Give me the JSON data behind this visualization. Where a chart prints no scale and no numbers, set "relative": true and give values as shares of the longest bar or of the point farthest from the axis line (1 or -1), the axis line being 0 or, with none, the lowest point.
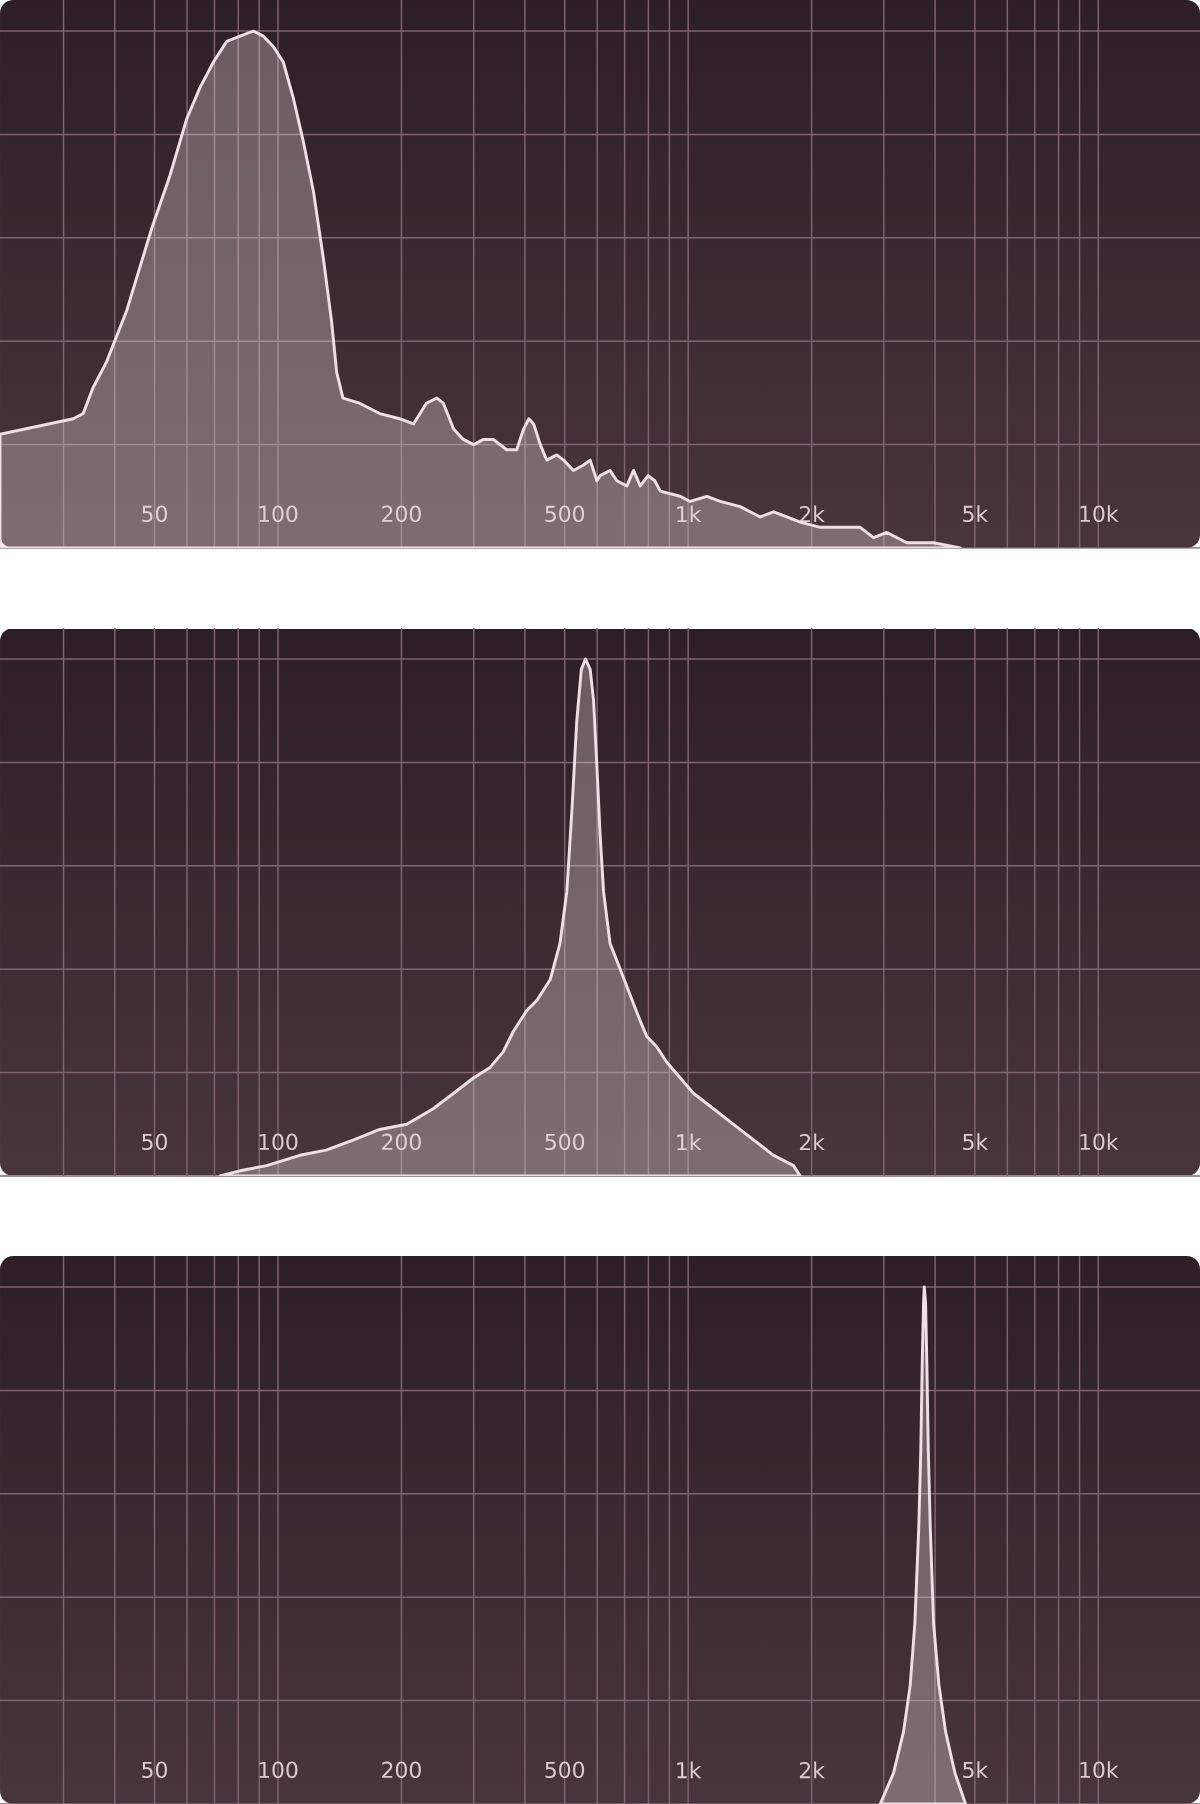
{
  "chart_data": [
    {
      "type": "area",
      "relative": true,
      "color": "#eddfe3",
      "log": "x",
      "grid": true,
      "xlim": [
        21,
        17700
      ],
      "xticks": [
        {
          "value": 30,
          "label": null
        },
        {
          "value": 40,
          "label": null
        },
        50,
        {
          "value": 60,
          "label": null
        },
        {
          "value": 70,
          "label": null
        },
        {
          "value": 80,
          "label": null
        },
        {
          "value": 90,
          "label": null
        },
        100,
        200,
        {
          "value": 300,
          "label": null
        },
        {
          "value": 400,
          "label": null
        },
        500,
        {
          "value": 600,
          "label": null
        },
        {
          "value": 700,
          "label": null
        },
        {
          "value": 800,
          "label": null
        },
        {
          "value": 900,
          "label": null
        },
        {
          "value": 1000,
          "label": "1k"
        },
        {
          "value": 2000,
          "label": "2k"
        },
        {
          "value": 3000,
          "label": null
        },
        {
          "value": 4000,
          "label": null
        },
        {
          "value": 5000,
          "label": "5k"
        },
        {
          "value": 6000,
          "label": null
        },
        {
          "value": 7000,
          "label": null
        },
        {
          "value": 8000,
          "label": null
        },
        {
          "value": 9000,
          "label": null
        },
        {
          "value": 10000,
          "label": "10k"
        }
      ],
      "x": [
        21,
        31.7,
        33.5,
        35.4,
        38.2,
        42.8,
        49.3,
        54.5,
        59.9,
        64.5,
        69.6,
        75,
        80.8,
        87.1,
        92.1,
        97.4,
        103,
        109,
        115,
        122,
        129,
        135,
        139,
        144,
        158,
        177,
        198,
        214,
        222,
        230,
        244,
        253,
        268,
        283,
        300,
        317,
        335,
        361,
        382,
        397,
        409,
        420,
        436,
        452,
        478,
        497,
        525,
        555,
        577,
        599,
        610,
        645,
        670,
        709,
        736,
        764,
        799,
        829,
        855,
        956,
        1011,
        1111,
        1197,
        1339,
        1498,
        1615,
        1741,
        1876,
        2099,
        2348,
        2627,
        2831,
        3051,
        3414,
        3966,
        4607
      ],
      "values": [
        0.22,
        0.25,
        0.26,
        0.31,
        0.36,
        0.46,
        0.62,
        0.72,
        0.83,
        0.89,
        0.94,
        0.98,
        0.99,
        1.0,
        0.99,
        0.97,
        0.94,
        0.87,
        0.79,
        0.69,
        0.56,
        0.44,
        0.34,
        0.29,
        0.28,
        0.26,
        0.25,
        0.24,
        0.26,
        0.28,
        0.29,
        0.28,
        0.23,
        0.21,
        0.2,
        0.21,
        0.21,
        0.19,
        0.19,
        0.23,
        0.25,
        0.24,
        0.2,
        0.17,
        0.18,
        0.17,
        0.15,
        0.16,
        0.17,
        0.13,
        0.14,
        0.15,
        0.13,
        0.12,
        0.15,
        0.12,
        0.14,
        0.13,
        0.11,
        0.1,
        0.09,
        0.1,
        0.09,
        0.08,
        0.06,
        0.07,
        0.06,
        0.05,
        0.04,
        0.04,
        0.04,
        0.02,
        0.03,
        0.01,
        0.01,
        0
      ]
    },
    {
      "type": "area",
      "relative": true,
      "color": "#eddfe3",
      "log": "x",
      "grid": true,
      "xlim": [
        21,
        17700
      ],
      "xticks": [
        {
          "value": 30,
          "label": null
        },
        {
          "value": 40,
          "label": null
        },
        50,
        {
          "value": 60,
          "label": null
        },
        {
          "value": 70,
          "label": null
        },
        {
          "value": 80,
          "label": null
        },
        {
          "value": 90,
          "label": null
        },
        100,
        200,
        {
          "value": 300,
          "label": null
        },
        {
          "value": 400,
          "label": null
        },
        500,
        {
          "value": 600,
          "label": null
        },
        {
          "value": 700,
          "label": null
        },
        {
          "value": 800,
          "label": null
        },
        {
          "value": 900,
          "label": null
        },
        {
          "value": 1000,
          "label": "1k"
        },
        {
          "value": 2000,
          "label": "2k"
        },
        {
          "value": 3000,
          "label": null
        },
        {
          "value": 4000,
          "label": null
        },
        {
          "value": 5000,
          "label": "5k"
        },
        {
          "value": 6000,
          "label": null
        },
        {
          "value": 7000,
          "label": null
        },
        {
          "value": 8000,
          "label": null
        },
        {
          "value": 9000,
          "label": null
        },
        {
          "value": 10000,
          "label": "10k"
        }
      ],
      "x": [
        72.2,
        80.8,
        93.8,
        113,
        131,
        153,
        177,
        206,
        239,
        268,
        300,
        329,
        354,
        375,
        404,
        428,
        461,
        487,
        506,
        521,
        535,
        549,
        562,
        577,
        588,
        601,
        610,
        622,
        645,
        683,
        722,
        764,
        793,
        838,
        887,
        956,
        1030,
        1153,
        1290,
        1443,
        1615,
        1807,
        1876
      ],
      "values": [
        0,
        0.01,
        0.02,
        0.04,
        0.05,
        0.07,
        0.09,
        0.1,
        0.13,
        0.16,
        0.19,
        0.21,
        0.24,
        0.28,
        0.32,
        0.34,
        0.38,
        0.45,
        0.55,
        0.71,
        0.88,
        0.98,
        1.0,
        0.98,
        0.92,
        0.77,
        0.66,
        0.55,
        0.45,
        0.4,
        0.35,
        0.3,
        0.27,
        0.25,
        0.22,
        0.19,
        0.16,
        0.13,
        0.1,
        0.07,
        0.04,
        0.02,
        0
      ]
    },
    {
      "type": "area",
      "relative": true,
      "color": "#eddfe3",
      "log": "x",
      "grid": true,
      "xlim": [
        21,
        17700
      ],
      "xticks": [
        {
          "value": 30,
          "label": null
        },
        {
          "value": 40,
          "label": null
        },
        50,
        {
          "value": 60,
          "label": null
        },
        {
          "value": 70,
          "label": null
        },
        {
          "value": 80,
          "label": null
        },
        {
          "value": 90,
          "label": null
        },
        100,
        200,
        {
          "value": 300,
          "label": null
        },
        {
          "value": 400,
          "label": null
        },
        500,
        {
          "value": 600,
          "label": null
        },
        {
          "value": 700,
          "label": null
        },
        {
          "value": 800,
          "label": null
        },
        {
          "value": 900,
          "label": null
        },
        {
          "value": 1000,
          "label": "1k"
        },
        {
          "value": 2000,
          "label": "2k"
        },
        {
          "value": 3000,
          "label": null
        },
        {
          "value": 4000,
          "label": null
        },
        {
          "value": 5000,
          "label": "5k"
        },
        {
          "value": 6000,
          "label": null
        },
        {
          "value": 7000,
          "label": null
        },
        {
          "value": 8000,
          "label": null
        },
        {
          "value": 9000,
          "label": null
        },
        {
          "value": 10000,
          "label": "10k"
        }
      ],
      "x": [
        2940,
        3168,
        3351,
        3479,
        3571,
        3652,
        3693,
        3721,
        3750,
        3764,
        3792,
        3820,
        3849,
        3892,
        3966,
        4087,
        4243,
        4471,
        4746
      ],
      "values": [
        0,
        0.06,
        0.14,
        0.23,
        0.35,
        0.54,
        0.69,
        0.85,
        0.97,
        1.0,
        0.97,
        0.85,
        0.69,
        0.54,
        0.35,
        0.23,
        0.14,
        0.06,
        0
      ]
    }
  ]
}
